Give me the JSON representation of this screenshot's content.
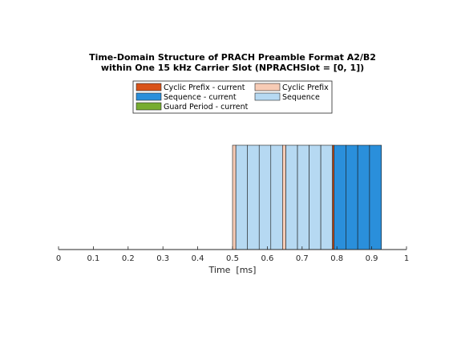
{
  "chart_data": {
    "type": "bar",
    "title_lines": [
      "Time-Domain Structure of PRACH Preamble Format A2/B2",
      "within One 15 kHz Carrier Slot (NPRACHSlot = [0, 1])"
    ],
    "xlabel": "Time  [ms]",
    "ylabel": "",
    "xlim": [
      0,
      1
    ],
    "xticks": [
      "0",
      "0.1",
      "0.2",
      "0.3",
      "0.4",
      "0.5",
      "0.6",
      "0.7",
      "0.8",
      "0.9",
      "1"
    ],
    "grid": false,
    "legend_position": "top",
    "legend": [
      {
        "label": "Cyclic Prefix - current",
        "color": "#D95319"
      },
      {
        "label": "Sequence - current",
        "color": "#2A8FDB"
      },
      {
        "label": "Guard Period - current",
        "color": "#77AC30"
      },
      {
        "label": "Cyclic Prefix",
        "color": "#F7CBB5"
      },
      {
        "label": "Sequence",
        "color": "#B6D9F2"
      }
    ],
    "segments": [
      {
        "series": "Cyclic Prefix",
        "start": 0.5,
        "end": 0.5096
      },
      {
        "series": "Sequence",
        "start": 0.5096,
        "end": 0.5431
      },
      {
        "series": "Sequence",
        "start": 0.5431,
        "end": 0.5766
      },
      {
        "series": "Sequence",
        "start": 0.5766,
        "end": 0.6101
      },
      {
        "series": "Sequence",
        "start": 0.6101,
        "end": 0.6436
      },
      {
        "series": "Cyclic Prefix",
        "start": 0.6436,
        "end": 0.6532
      },
      {
        "series": "Sequence",
        "start": 0.6532,
        "end": 0.6867
      },
      {
        "series": "Sequence",
        "start": 0.6867,
        "end": 0.7202
      },
      {
        "series": "Sequence",
        "start": 0.7202,
        "end": 0.7537
      },
      {
        "series": "Sequence",
        "start": 0.7537,
        "end": 0.7872
      },
      {
        "series": "Cyclic Prefix - current",
        "start": 0.7872,
        "end": 0.7918
      },
      {
        "series": "Sequence - current",
        "start": 0.7918,
        "end": 0.8258
      },
      {
        "series": "Sequence - current",
        "start": 0.8258,
        "end": 0.8598
      },
      {
        "series": "Sequence - current",
        "start": 0.8598,
        "end": 0.8938
      },
      {
        "series": "Sequence - current",
        "start": 0.8938,
        "end": 0.9278
      }
    ]
  }
}
